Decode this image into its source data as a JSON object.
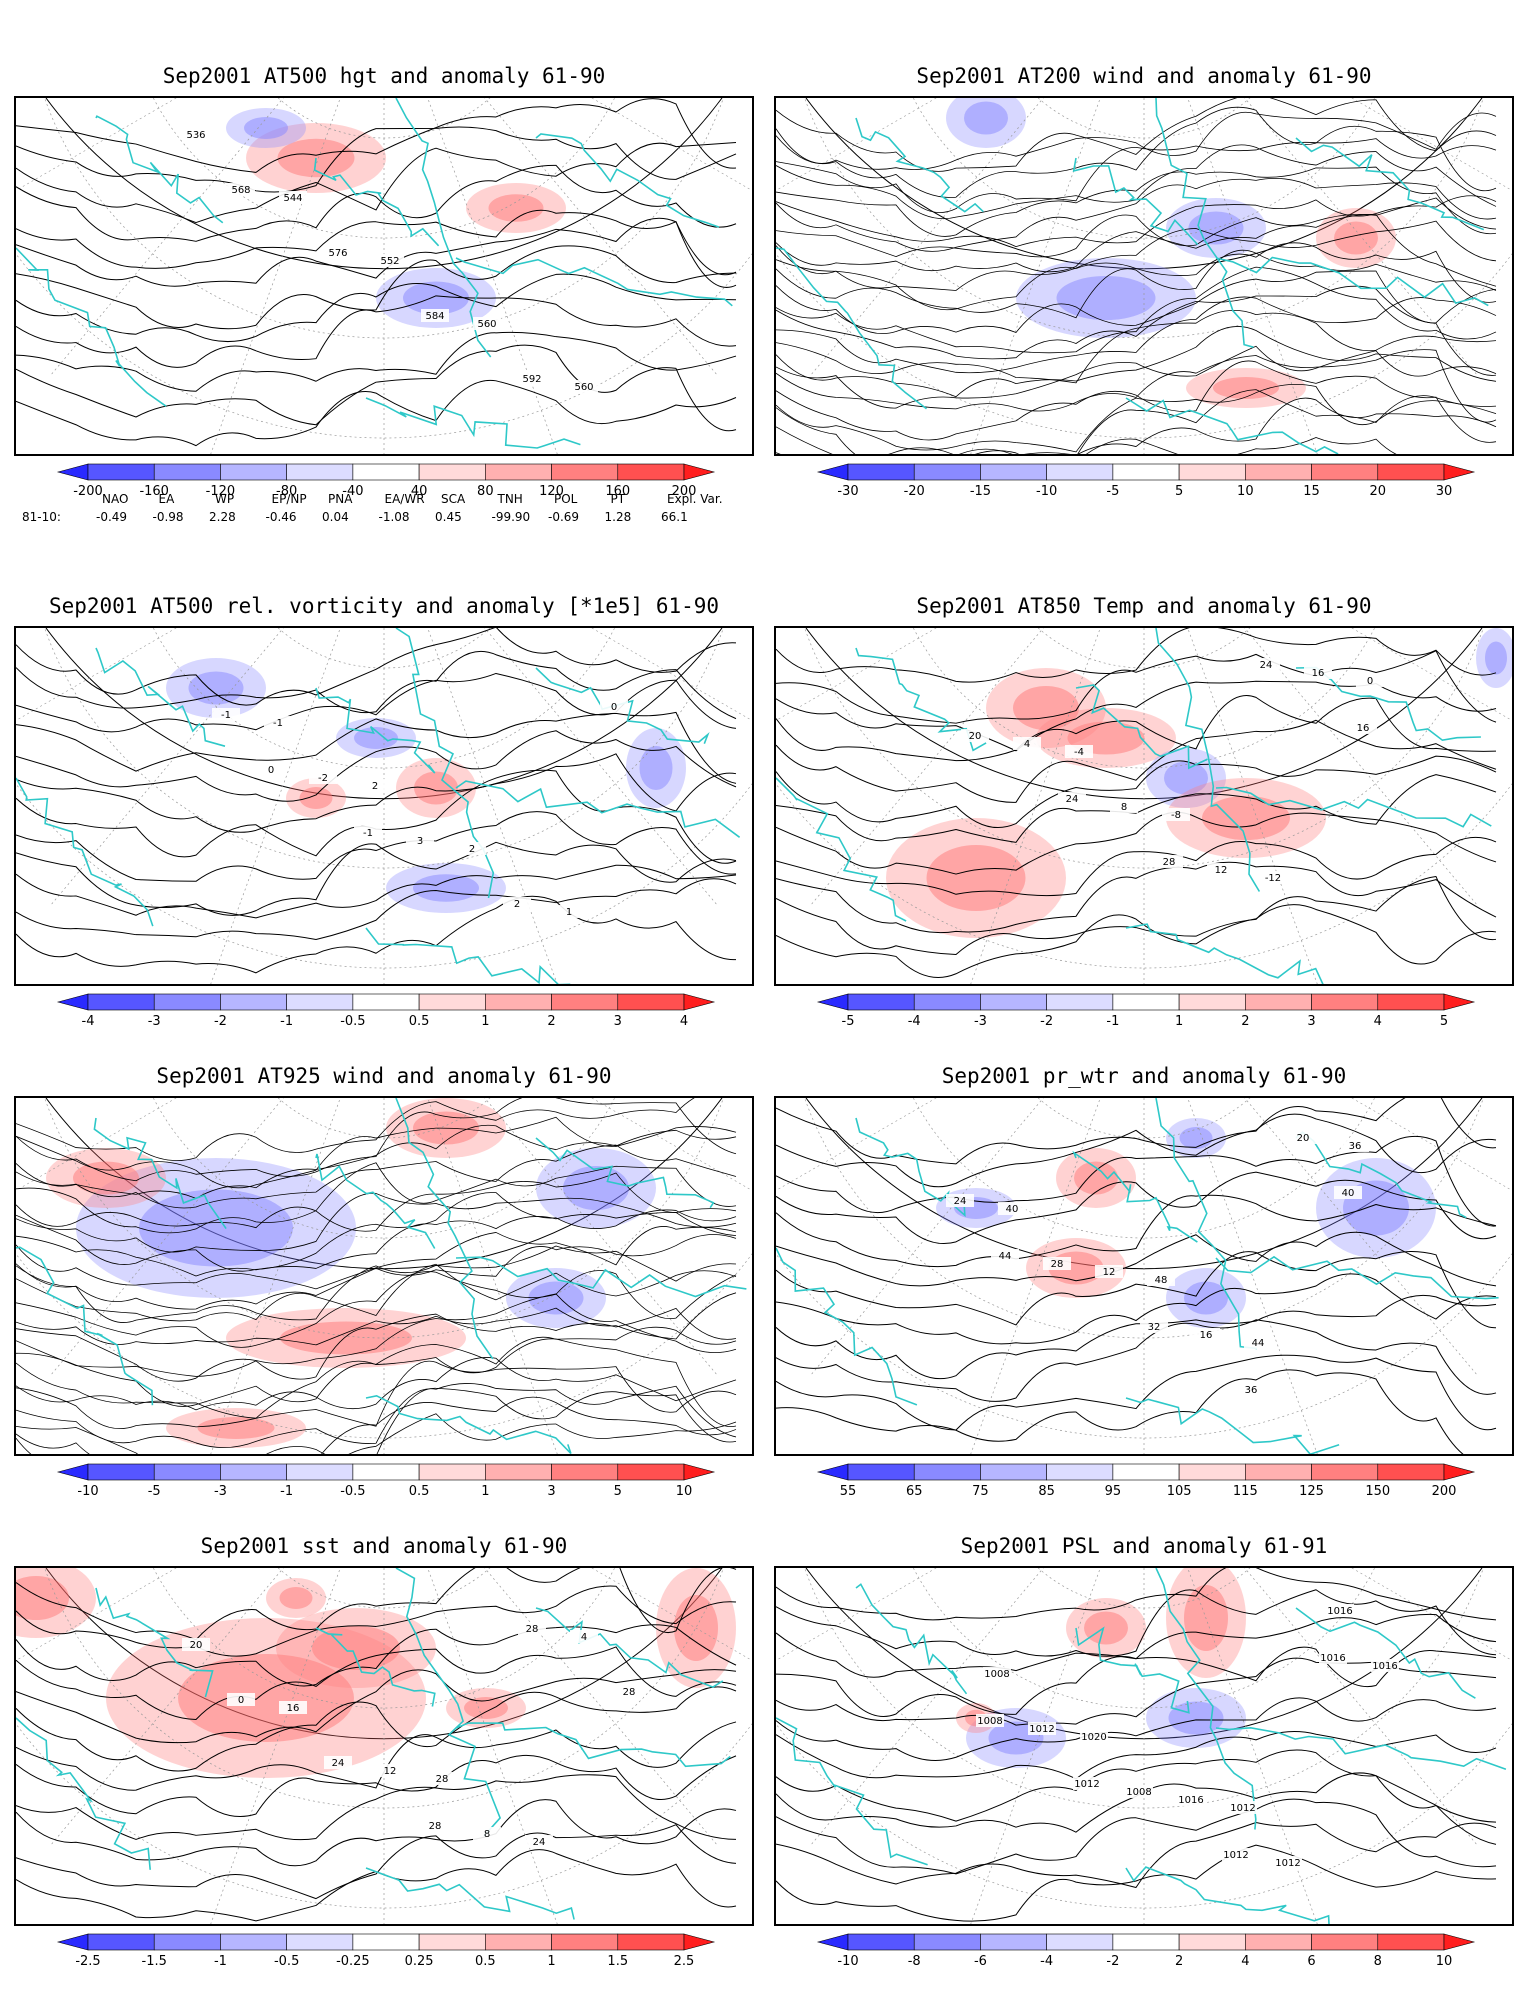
{
  "panels": [
    {
      "title": "Sep2001 AT500 hgt and anomaly 61-90",
      "contour_labels": [
        "536",
        "544",
        "552",
        "560",
        "560",
        "568",
        "576",
        "584",
        "592"
      ],
      "colorbar": [
        "-200",
        "-160",
        "-120",
        "-80",
        "-40",
        "40",
        "80",
        "120",
        "160",
        "200"
      ]
    },
    {
      "title": "Sep2001 AT200 wind and anomaly 61-90",
      "contour_labels": [],
      "colorbar": [
        "-30",
        "-20",
        "-15",
        "-10",
        "-5",
        "5",
        "10",
        "15",
        "20",
        "30"
      ]
    },
    {
      "title": "Sep2001 AT500 rel. vorticity and anomaly [*1e5] 61-90",
      "contour_labels": [
        "-1",
        "2",
        "2",
        "1",
        "-1",
        "-2",
        "3",
        "2",
        "0",
        "0",
        "-1"
      ],
      "colorbar": [
        "-4",
        "-3",
        "-2",
        "-1",
        "-0.5",
        "0.5",
        "1",
        "2",
        "3",
        "4"
      ]
    },
    {
      "title": "Sep2001 AT850 Temp and anomaly 61-90",
      "contour_labels": [
        "-4",
        "-8",
        "-12",
        "0",
        "4",
        "8",
        "12",
        "16",
        "20",
        "24",
        "28",
        "24",
        "16"
      ],
      "colorbar": [
        "-5",
        "-4",
        "-3",
        "-2",
        "-1",
        "1",
        "2",
        "3",
        "4",
        "5"
      ]
    },
    {
      "title": "Sep2001 AT925 wind and anomaly 61-90",
      "contour_labels": [],
      "colorbar": [
        "-10",
        "-5",
        "-3",
        "-1",
        "-0.5",
        "0.5",
        "1",
        "3",
        "5",
        "10"
      ]
    },
    {
      "title": "Sep2001 pr_wtr and anomaly 61-90",
      "contour_labels": [
        "48",
        "44",
        "36",
        "40",
        "12",
        "16",
        "20",
        "24",
        "28",
        "32",
        "36",
        "40",
        "44"
      ],
      "colorbar": [
        "55",
        "65",
        "75",
        "85",
        "95",
        "105",
        "115",
        "125",
        "150",
        "200"
      ]
    },
    {
      "title": "Sep2001 sst and anomaly 61-90",
      "contour_labels": [
        "28",
        "24",
        "20",
        "16",
        "12",
        "8",
        "4",
        "0",
        "24",
        "28",
        "28",
        "28"
      ],
      "colorbar": [
        "-2.5",
        "-1.5",
        "-1",
        "-0.5",
        "-0.25",
        "0.25",
        "0.5",
        "1",
        "1.5",
        "2.5"
      ]
    },
    {
      "title": "Sep2001 PSL and anomaly 61-91",
      "contour_labels": [
        "1012",
        "1016",
        "1008",
        "1020",
        "1016",
        "1012",
        "1016",
        "1012",
        "1008",
        "1012",
        "1016",
        "1008",
        "1012"
      ],
      "colorbar": [
        "-10",
        "-8",
        "-6",
        "-4",
        "-2",
        "2",
        "4",
        "6",
        "8",
        "10"
      ]
    }
  ],
  "colorbar_colors": [
    "#2a2aff",
    "#5656ff",
    "#8a8aff",
    "#b6b6ff",
    "#dcdcff",
    "#ffffff",
    "#ffdada",
    "#ffb0b0",
    "#ff8080",
    "#ff5050",
    "#ff1e1e"
  ],
  "anomaly_colors": {
    "negative": "#7878ff",
    "positive": "#ff6a6a"
  },
  "coastline_color": "#2ec8c8",
  "teleconnection": {
    "headers": [
      "NAO",
      "EA",
      "WP",
      "EP/NP",
      "PNA",
      "EA/WR",
      "SCA",
      "TNH",
      "POL",
      "PT",
      "Expl. Var."
    ],
    "row_label": "81-10:",
    "values": [
      "-0.49",
      "-0.98",
      "2.28",
      "-0.46",
      "0.04",
      "-1.08",
      "0.45",
      "-99.90",
      "-0.69",
      "1.28",
      "66.1"
    ]
  }
}
